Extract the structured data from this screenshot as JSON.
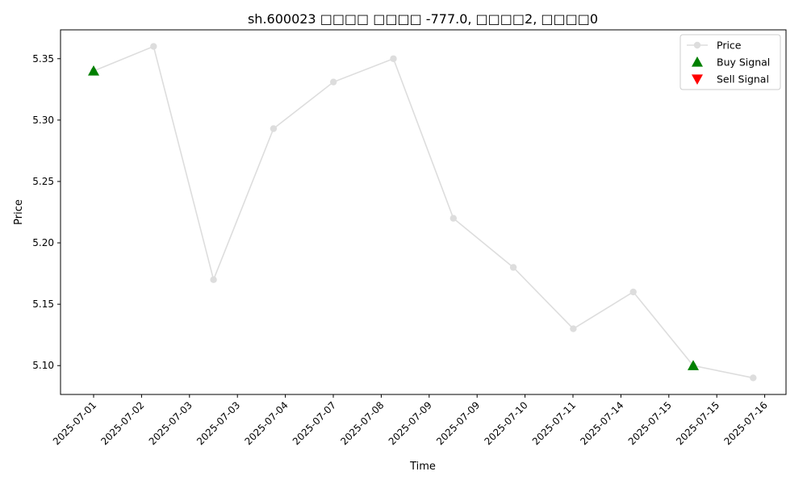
{
  "chart_data": {
    "type": "line",
    "title": "sh.600023 □□□□ □□□□ -777.0, □□□□2, □□□□0",
    "xlabel": "Time",
    "ylabel": "Price",
    "x_tick_labels": [
      "2025-07-01",
      "2025-07-02",
      "2025-07-03",
      "2025-07-03",
      "2025-07-04",
      "2025-07-07",
      "2025-07-08",
      "2025-07-09",
      "2025-07-09",
      "2025-07-10",
      "2025-07-11",
      "2025-07-14",
      "2025-07-15",
      "2025-07-15",
      "2025-07-16"
    ],
    "y_ticks": [
      5.1,
      5.15,
      5.2,
      5.25,
      5.3,
      5.35
    ],
    "ylim": [
      5.0765,
      5.3735
    ],
    "grid": false,
    "legend_position": "top-right",
    "series": [
      {
        "name": "Price",
        "color": "#dddddd",
        "points": [
          {
            "t": 0,
            "y": 5.34
          },
          {
            "t": 1,
            "y": 5.36
          },
          {
            "t": 2,
            "y": 5.17
          },
          {
            "t": 3,
            "y": 5.293
          },
          {
            "t": 4,
            "y": 5.331
          },
          {
            "t": 5,
            "y": 5.35
          },
          {
            "t": 6,
            "y": 5.22
          },
          {
            "t": 7,
            "y": 5.18
          },
          {
            "t": 8,
            "y": 5.13
          },
          {
            "t": 9,
            "y": 5.16
          },
          {
            "t": 10,
            "y": 5.1
          },
          {
            "t": 11,
            "y": 5.09
          }
        ]
      },
      {
        "name": "Buy Signal",
        "color": "#008000",
        "marker": "triangle-up",
        "points": [
          {
            "t": 0,
            "y": 5.34
          },
          {
            "t": 10,
            "y": 5.1
          }
        ]
      },
      {
        "name": "Sell Signal",
        "color": "#ff0000",
        "marker": "triangle-down",
        "points": []
      }
    ]
  }
}
